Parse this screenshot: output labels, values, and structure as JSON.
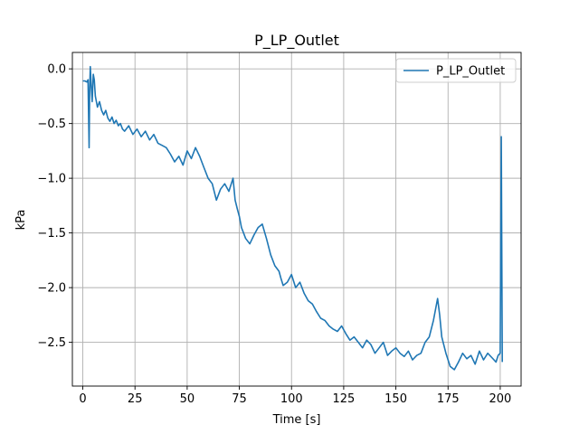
{
  "chart_data": {
    "type": "line",
    "title": "P_LP_Outlet",
    "xlabel": "Time [s]",
    "ylabel": "kPa",
    "xlim": [
      -5,
      210
    ],
    "ylim": [
      -2.9,
      0.15
    ],
    "x_ticks": [
      0,
      25,
      50,
      75,
      100,
      125,
      150,
      175,
      200
    ],
    "y_ticks": [
      0.0,
      -0.5,
      -1.0,
      -1.5,
      -2.0,
      -2.5
    ],
    "x_tick_labels": [
      "0",
      "25",
      "50",
      "75",
      "100",
      "125",
      "150",
      "175",
      "200"
    ],
    "y_tick_labels": [
      "0.0",
      "−0.5",
      "−1.0",
      "−1.5",
      "−2.0",
      "−2.5"
    ],
    "grid": true,
    "legend_position": "top-right",
    "series": [
      {
        "name": "P_LP_Outlet",
        "color": "#1f77b4",
        "x": [
          0,
          1,
          2,
          2.5,
          3,
          3.3,
          3.6,
          4,
          4.5,
          5,
          5.5,
          6,
          7,
          8,
          9,
          10,
          11,
          12,
          13,
          14,
          15,
          16,
          17,
          18,
          19,
          20,
          22,
          24,
          26,
          28,
          30,
          32,
          34,
          36,
          38,
          40,
          42,
          44,
          46,
          48,
          50,
          52,
          54,
          56,
          58,
          60,
          62,
          64,
          66,
          68,
          70,
          72,
          73,
          74,
          75,
          76,
          78,
          80,
          82,
          84,
          86,
          88,
          90,
          92,
          94,
          95,
          96,
          98,
          100,
          102,
          104,
          106,
          108,
          110,
          112,
          114,
          116,
          118,
          120,
          122,
          124,
          126,
          128,
          130,
          132,
          134,
          136,
          138,
          140,
          142,
          144,
          146,
          148,
          150,
          152,
          154,
          156,
          158,
          160,
          162,
          164,
          166,
          168,
          170,
          171,
          172,
          174,
          176,
          178,
          180,
          182,
          184,
          186,
          188,
          190,
          192,
          194,
          196,
          198,
          199,
          200,
          200.5,
          201
        ],
        "values": [
          -0.11,
          -0.11,
          -0.12,
          -0.1,
          -0.72,
          -0.2,
          0.02,
          -0.15,
          -0.3,
          -0.05,
          -0.1,
          -0.25,
          -0.35,
          -0.3,
          -0.38,
          -0.42,
          -0.38,
          -0.45,
          -0.48,
          -0.44,
          -0.5,
          -0.47,
          -0.52,
          -0.5,
          -0.55,
          -0.57,
          -0.52,
          -0.6,
          -0.55,
          -0.62,
          -0.57,
          -0.65,
          -0.6,
          -0.68,
          -0.7,
          -0.72,
          -0.78,
          -0.85,
          -0.8,
          -0.88,
          -0.75,
          -0.82,
          -0.72,
          -0.8,
          -0.9,
          -1.0,
          -1.05,
          -1.2,
          -1.1,
          -1.05,
          -1.12,
          -1.0,
          -1.2,
          -1.28,
          -1.35,
          -1.45,
          -1.55,
          -1.6,
          -1.52,
          -1.45,
          -1.42,
          -1.55,
          -1.7,
          -1.8,
          -1.85,
          -1.92,
          -1.98,
          -1.95,
          -1.88,
          -2.0,
          -1.95,
          -2.05,
          -2.12,
          -2.15,
          -2.22,
          -2.28,
          -2.3,
          -2.35,
          -2.38,
          -2.4,
          -2.35,
          -2.42,
          -2.48,
          -2.45,
          -2.5,
          -2.55,
          -2.48,
          -2.52,
          -2.6,
          -2.55,
          -2.5,
          -2.62,
          -2.58,
          -2.55,
          -2.6,
          -2.63,
          -2.58,
          -2.66,
          -2.62,
          -2.6,
          -2.5,
          -2.45,
          -2.3,
          -2.1,
          -2.25,
          -2.45,
          -2.6,
          -2.72,
          -2.75,
          -2.68,
          -2.6,
          -2.65,
          -2.62,
          -2.7,
          -2.58,
          -2.66,
          -2.6,
          -2.64,
          -2.68,
          -2.62,
          -2.6,
          -0.62,
          -2.68
        ]
      }
    ]
  }
}
